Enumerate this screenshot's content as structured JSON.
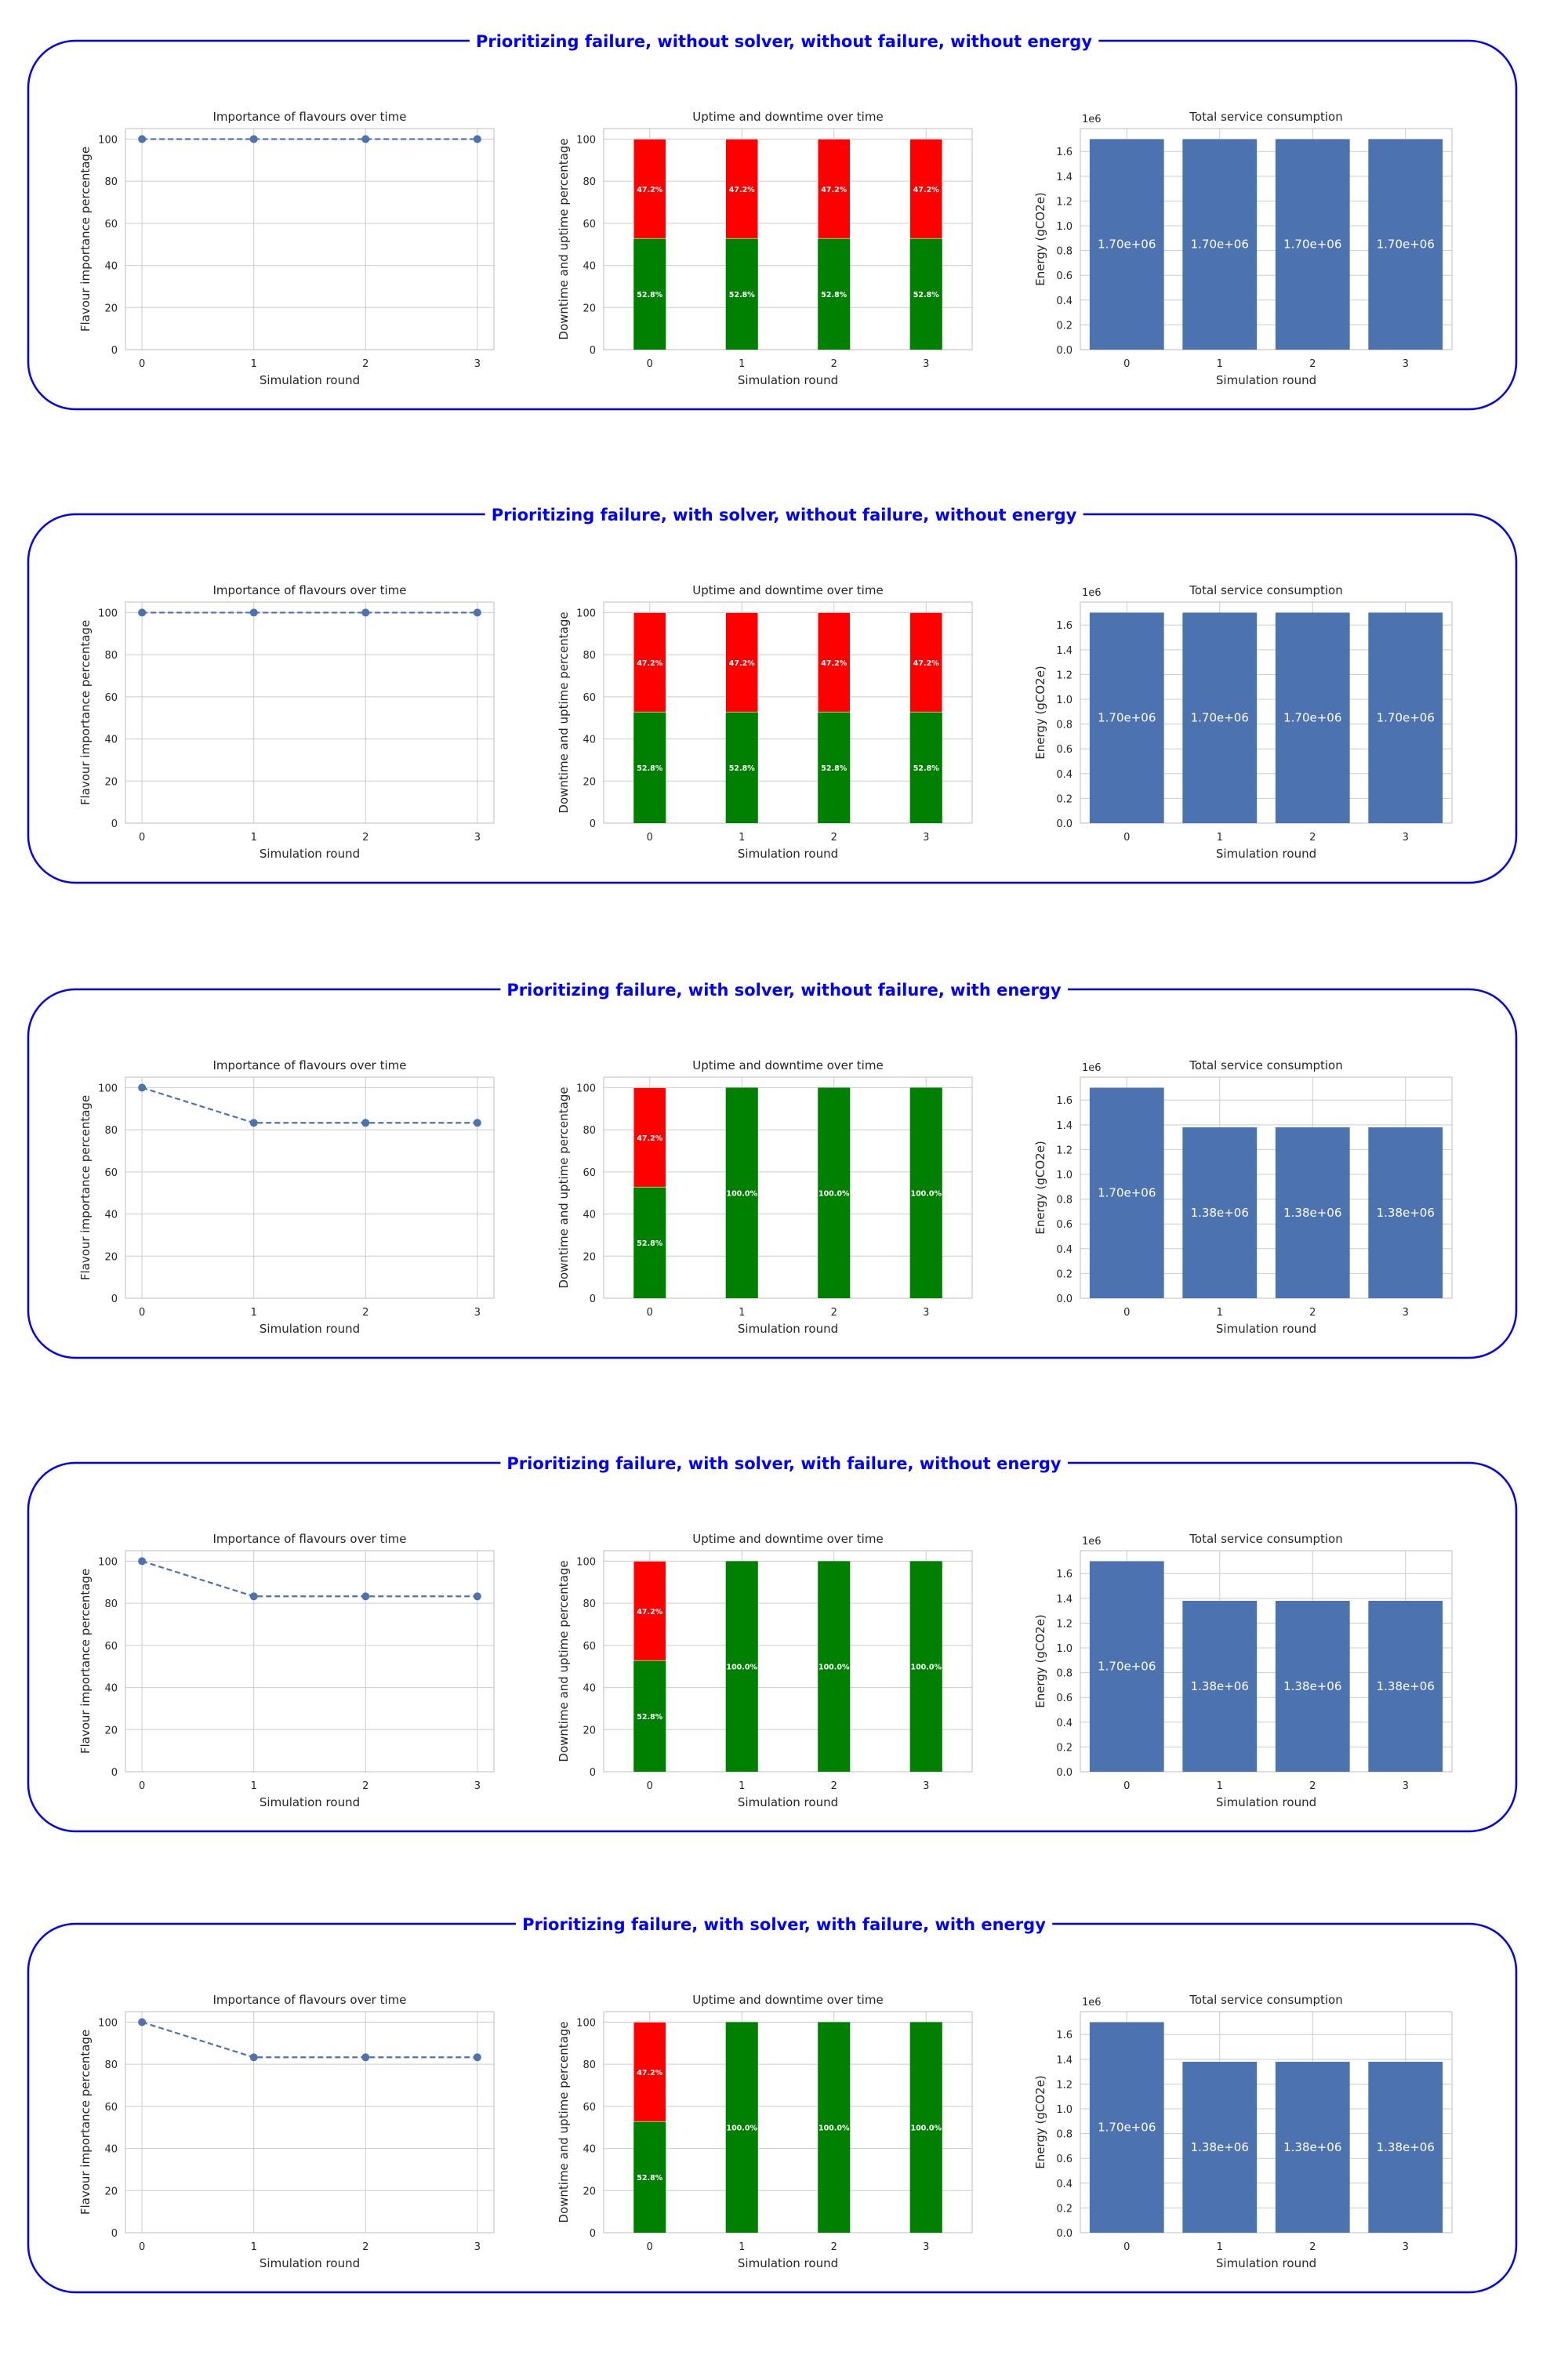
{
  "colors": {
    "frame": "#0000ff",
    "series_blue": "#4c72b0",
    "uptime": "#008000",
    "downtime": "#ff0000",
    "grid": "#cccccc",
    "axis": "#cccccc",
    "text": "#262626"
  },
  "panels": [
    {
      "title": "Prioritizing failure, without solver, without failure, without energy"
    },
    {
      "title": "Prioritizing failure, with solver, without failure, without energy"
    },
    {
      "title": "Prioritizing failure, with solver, without failure, with energy"
    },
    {
      "title": "Prioritizing failure, with solver, with failure, without energy"
    },
    {
      "title": "Prioritizing failure, with solver, with failure, with energy"
    }
  ],
  "chart_data": [
    {
      "panel": 0,
      "kind": "importance",
      "type": "line",
      "title": "Importance of flavours over time",
      "xlabel": "Simulation round",
      "ylabel": "Flavour importance percentage",
      "x": [
        0,
        1,
        2,
        3
      ],
      "series": [
        {
          "values": [
            100,
            100,
            100,
            100
          ]
        }
      ],
      "ylim": [
        0,
        105
      ],
      "yticks": [
        0,
        20,
        40,
        60,
        80,
        100
      ],
      "line_style": "dashed",
      "marker": "circle",
      "grid": true
    },
    {
      "panel": 0,
      "kind": "uptime",
      "type": "bar",
      "stacked": true,
      "title": "Uptime and downtime over time",
      "xlabel": "Simulation round",
      "ylabel": "Downtime and uptime percentage",
      "categories": [
        "0",
        "1",
        "2",
        "3"
      ],
      "series": [
        {
          "values": [
            52.8,
            52.8,
            52.8,
            52.8
          ],
          "labels": [
            "52.8%",
            "52.8%",
            "52.8%",
            "52.8%"
          ]
        },
        {
          "values": [
            47.2,
            47.2,
            47.2,
            47.2
          ],
          "labels": [
            "47.2%",
            "47.2%",
            "47.2%",
            "47.2%"
          ]
        }
      ],
      "ylim": [
        0,
        105
      ],
      "yticks": [
        0,
        20,
        40,
        60,
        80,
        100
      ],
      "grid": true
    },
    {
      "panel": 0,
      "kind": "energy",
      "type": "bar",
      "title": "Total service consumption",
      "xlabel": "Simulation round",
      "ylabel": "Energy (gCO2e)",
      "offset_text": "1e6",
      "categories": [
        "0",
        "1",
        "2",
        "3"
      ],
      "values": [
        1.7,
        1.7,
        1.7,
        1.7
      ],
      "labels": [
        "1.70e+06",
        "1.70e+06",
        "1.70e+06",
        "1.70e+06"
      ],
      "ylim": [
        0,
        1.785
      ],
      "yticks": [
        "0.0",
        "0.2",
        "0.4",
        "0.6",
        "0.8",
        "1.0",
        "1.2",
        "1.4",
        "1.6"
      ],
      "grid": true
    },
    {
      "panel": 1,
      "kind": "importance",
      "type": "line",
      "title": "Importance of flavours over time",
      "xlabel": "Simulation round",
      "ylabel": "Flavour importance percentage",
      "x": [
        0,
        1,
        2,
        3
      ],
      "series": [
        {
          "values": [
            100,
            100,
            100,
            100
          ]
        }
      ],
      "ylim": [
        0,
        105
      ],
      "yticks": [
        0,
        20,
        40,
        60,
        80,
        100
      ],
      "line_style": "dashed",
      "marker": "circle",
      "grid": true
    },
    {
      "panel": 1,
      "kind": "uptime",
      "type": "bar",
      "stacked": true,
      "title": "Uptime and downtime over time",
      "xlabel": "Simulation round",
      "ylabel": "Downtime and uptime percentage",
      "categories": [
        "0",
        "1",
        "2",
        "3"
      ],
      "series": [
        {
          "values": [
            52.8,
            52.8,
            52.8,
            52.8
          ],
          "labels": [
            "52.8%",
            "52.8%",
            "52.8%",
            "52.8%"
          ]
        },
        {
          "values": [
            47.2,
            47.2,
            47.2,
            47.2
          ],
          "labels": [
            "47.2%",
            "47.2%",
            "47.2%",
            "47.2%"
          ]
        }
      ],
      "ylim": [
        0,
        105
      ],
      "yticks": [
        0,
        20,
        40,
        60,
        80,
        100
      ],
      "grid": true
    },
    {
      "panel": 1,
      "kind": "energy",
      "type": "bar",
      "title": "Total service consumption",
      "xlabel": "Simulation round",
      "ylabel": "Energy (gCO2e)",
      "offset_text": "1e6",
      "categories": [
        "0",
        "1",
        "2",
        "3"
      ],
      "values": [
        1.7,
        1.7,
        1.7,
        1.7
      ],
      "labels": [
        "1.70e+06",
        "1.70e+06",
        "1.70e+06",
        "1.70e+06"
      ],
      "ylim": [
        0,
        1.785
      ],
      "yticks": [
        "0.0",
        "0.2",
        "0.4",
        "0.6",
        "0.8",
        "1.0",
        "1.2",
        "1.4",
        "1.6"
      ],
      "grid": true
    },
    {
      "panel": 2,
      "kind": "importance",
      "type": "line",
      "title": "Importance of flavours over time",
      "xlabel": "Simulation round",
      "ylabel": "Flavour importance percentage",
      "x": [
        0,
        1,
        2,
        3
      ],
      "series": [
        {
          "values": [
            100,
            83.3,
            83.3,
            83.3
          ]
        }
      ],
      "ylim": [
        0,
        105
      ],
      "yticks": [
        0,
        20,
        40,
        60,
        80,
        100
      ],
      "line_style": "dashed",
      "marker": "circle",
      "grid": true
    },
    {
      "panel": 2,
      "kind": "uptime",
      "type": "bar",
      "stacked": true,
      "title": "Uptime and downtime over time",
      "xlabel": "Simulation round",
      "ylabel": "Downtime and uptime percentage",
      "categories": [
        "0",
        "1",
        "2",
        "3"
      ],
      "series": [
        {
          "values": [
            52.8,
            100,
            100,
            100
          ],
          "labels": [
            "52.8%",
            "100.0%",
            "100.0%",
            "100.0%"
          ]
        },
        {
          "values": [
            47.2,
            0,
            0,
            0
          ],
          "labels": [
            "47.2%",
            "",
            "",
            ""
          ]
        }
      ],
      "ylim": [
        0,
        105
      ],
      "yticks": [
        0,
        20,
        40,
        60,
        80,
        100
      ],
      "grid": true
    },
    {
      "panel": 2,
      "kind": "energy",
      "type": "bar",
      "title": "Total service consumption",
      "xlabel": "Simulation round",
      "ylabel": "Energy (gCO2e)",
      "offset_text": "1e6",
      "categories": [
        "0",
        "1",
        "2",
        "3"
      ],
      "values": [
        1.7,
        1.38,
        1.38,
        1.38
      ],
      "labels": [
        "1.70e+06",
        "1.38e+06",
        "1.38e+06",
        "1.38e+06"
      ],
      "ylim": [
        0,
        1.785
      ],
      "yticks": [
        "0.0",
        "0.2",
        "0.4",
        "0.6",
        "0.8",
        "1.0",
        "1.2",
        "1.4",
        "1.6"
      ],
      "grid": true
    },
    {
      "panel": 3,
      "kind": "importance",
      "type": "line",
      "title": "Importance of flavours over time",
      "xlabel": "Simulation round",
      "ylabel": "Flavour importance percentage",
      "x": [
        0,
        1,
        2,
        3
      ],
      "series": [
        {
          "values": [
            100,
            83.3,
            83.3,
            83.3
          ]
        }
      ],
      "ylim": [
        0,
        105
      ],
      "yticks": [
        0,
        20,
        40,
        60,
        80,
        100
      ],
      "line_style": "dashed",
      "marker": "circle",
      "grid": true
    },
    {
      "panel": 3,
      "kind": "uptime",
      "type": "bar",
      "stacked": true,
      "title": "Uptime and downtime over time",
      "xlabel": "Simulation round",
      "ylabel": "Downtime and uptime percentage",
      "categories": [
        "0",
        "1",
        "2",
        "3"
      ],
      "series": [
        {
          "values": [
            52.8,
            100,
            100,
            100
          ],
          "labels": [
            "52.8%",
            "100.0%",
            "100.0%",
            "100.0%"
          ]
        },
        {
          "values": [
            47.2,
            0,
            0,
            0
          ],
          "labels": [
            "47.2%",
            "",
            "",
            ""
          ]
        }
      ],
      "ylim": [
        0,
        105
      ],
      "yticks": [
        0,
        20,
        40,
        60,
        80,
        100
      ],
      "grid": true
    },
    {
      "panel": 3,
      "kind": "energy",
      "type": "bar",
      "title": "Total service consumption",
      "xlabel": "Simulation round",
      "ylabel": "Energy (gCO2e)",
      "offset_text": "1e6",
      "categories": [
        "0",
        "1",
        "2",
        "3"
      ],
      "values": [
        1.7,
        1.38,
        1.38,
        1.38
      ],
      "labels": [
        "1.70e+06",
        "1.38e+06",
        "1.38e+06",
        "1.38e+06"
      ],
      "ylim": [
        0,
        1.785
      ],
      "yticks": [
        "0.0",
        "0.2",
        "0.4",
        "0.6",
        "0.8",
        "1.0",
        "1.2",
        "1.4",
        "1.6"
      ],
      "grid": true
    },
    {
      "panel": 4,
      "kind": "importance",
      "type": "line",
      "title": "Importance of flavours over time",
      "xlabel": "Simulation round",
      "ylabel": "Flavour importance percentage",
      "x": [
        0,
        1,
        2,
        3
      ],
      "series": [
        {
          "values": [
            100,
            83.3,
            83.3,
            83.3
          ]
        }
      ],
      "ylim": [
        0,
        105
      ],
      "yticks": [
        0,
        20,
        40,
        60,
        80,
        100
      ],
      "line_style": "dashed",
      "marker": "circle",
      "grid": true
    },
    {
      "panel": 4,
      "kind": "uptime",
      "type": "bar",
      "stacked": true,
      "title": "Uptime and downtime over time",
      "xlabel": "Simulation round",
      "ylabel": "Downtime and uptime percentage",
      "categories": [
        "0",
        "1",
        "2",
        "3"
      ],
      "series": [
        {
          "values": [
            52.8,
            100,
            100,
            100
          ],
          "labels": [
            "52.8%",
            "100.0%",
            "100.0%",
            "100.0%"
          ]
        },
        {
          "values": [
            47.2,
            0,
            0,
            0
          ],
          "labels": [
            "47.2%",
            "",
            "",
            ""
          ]
        }
      ],
      "ylim": [
        0,
        105
      ],
      "yticks": [
        0,
        20,
        40,
        60,
        80,
        100
      ],
      "grid": true
    },
    {
      "panel": 4,
      "kind": "energy",
      "type": "bar",
      "title": "Total service consumption",
      "xlabel": "Simulation round",
      "ylabel": "Energy (gCO2e)",
      "offset_text": "1e6",
      "categories": [
        "0",
        "1",
        "2",
        "3"
      ],
      "values": [
        1.7,
        1.38,
        1.38,
        1.38
      ],
      "labels": [
        "1.70e+06",
        "1.38e+06",
        "1.38e+06",
        "1.38e+06"
      ],
      "ylim": [
        0,
        1.785
      ],
      "yticks": [
        "0.0",
        "0.2",
        "0.4",
        "0.6",
        "0.8",
        "1.0",
        "1.2",
        "1.4",
        "1.6"
      ],
      "grid": true
    }
  ]
}
